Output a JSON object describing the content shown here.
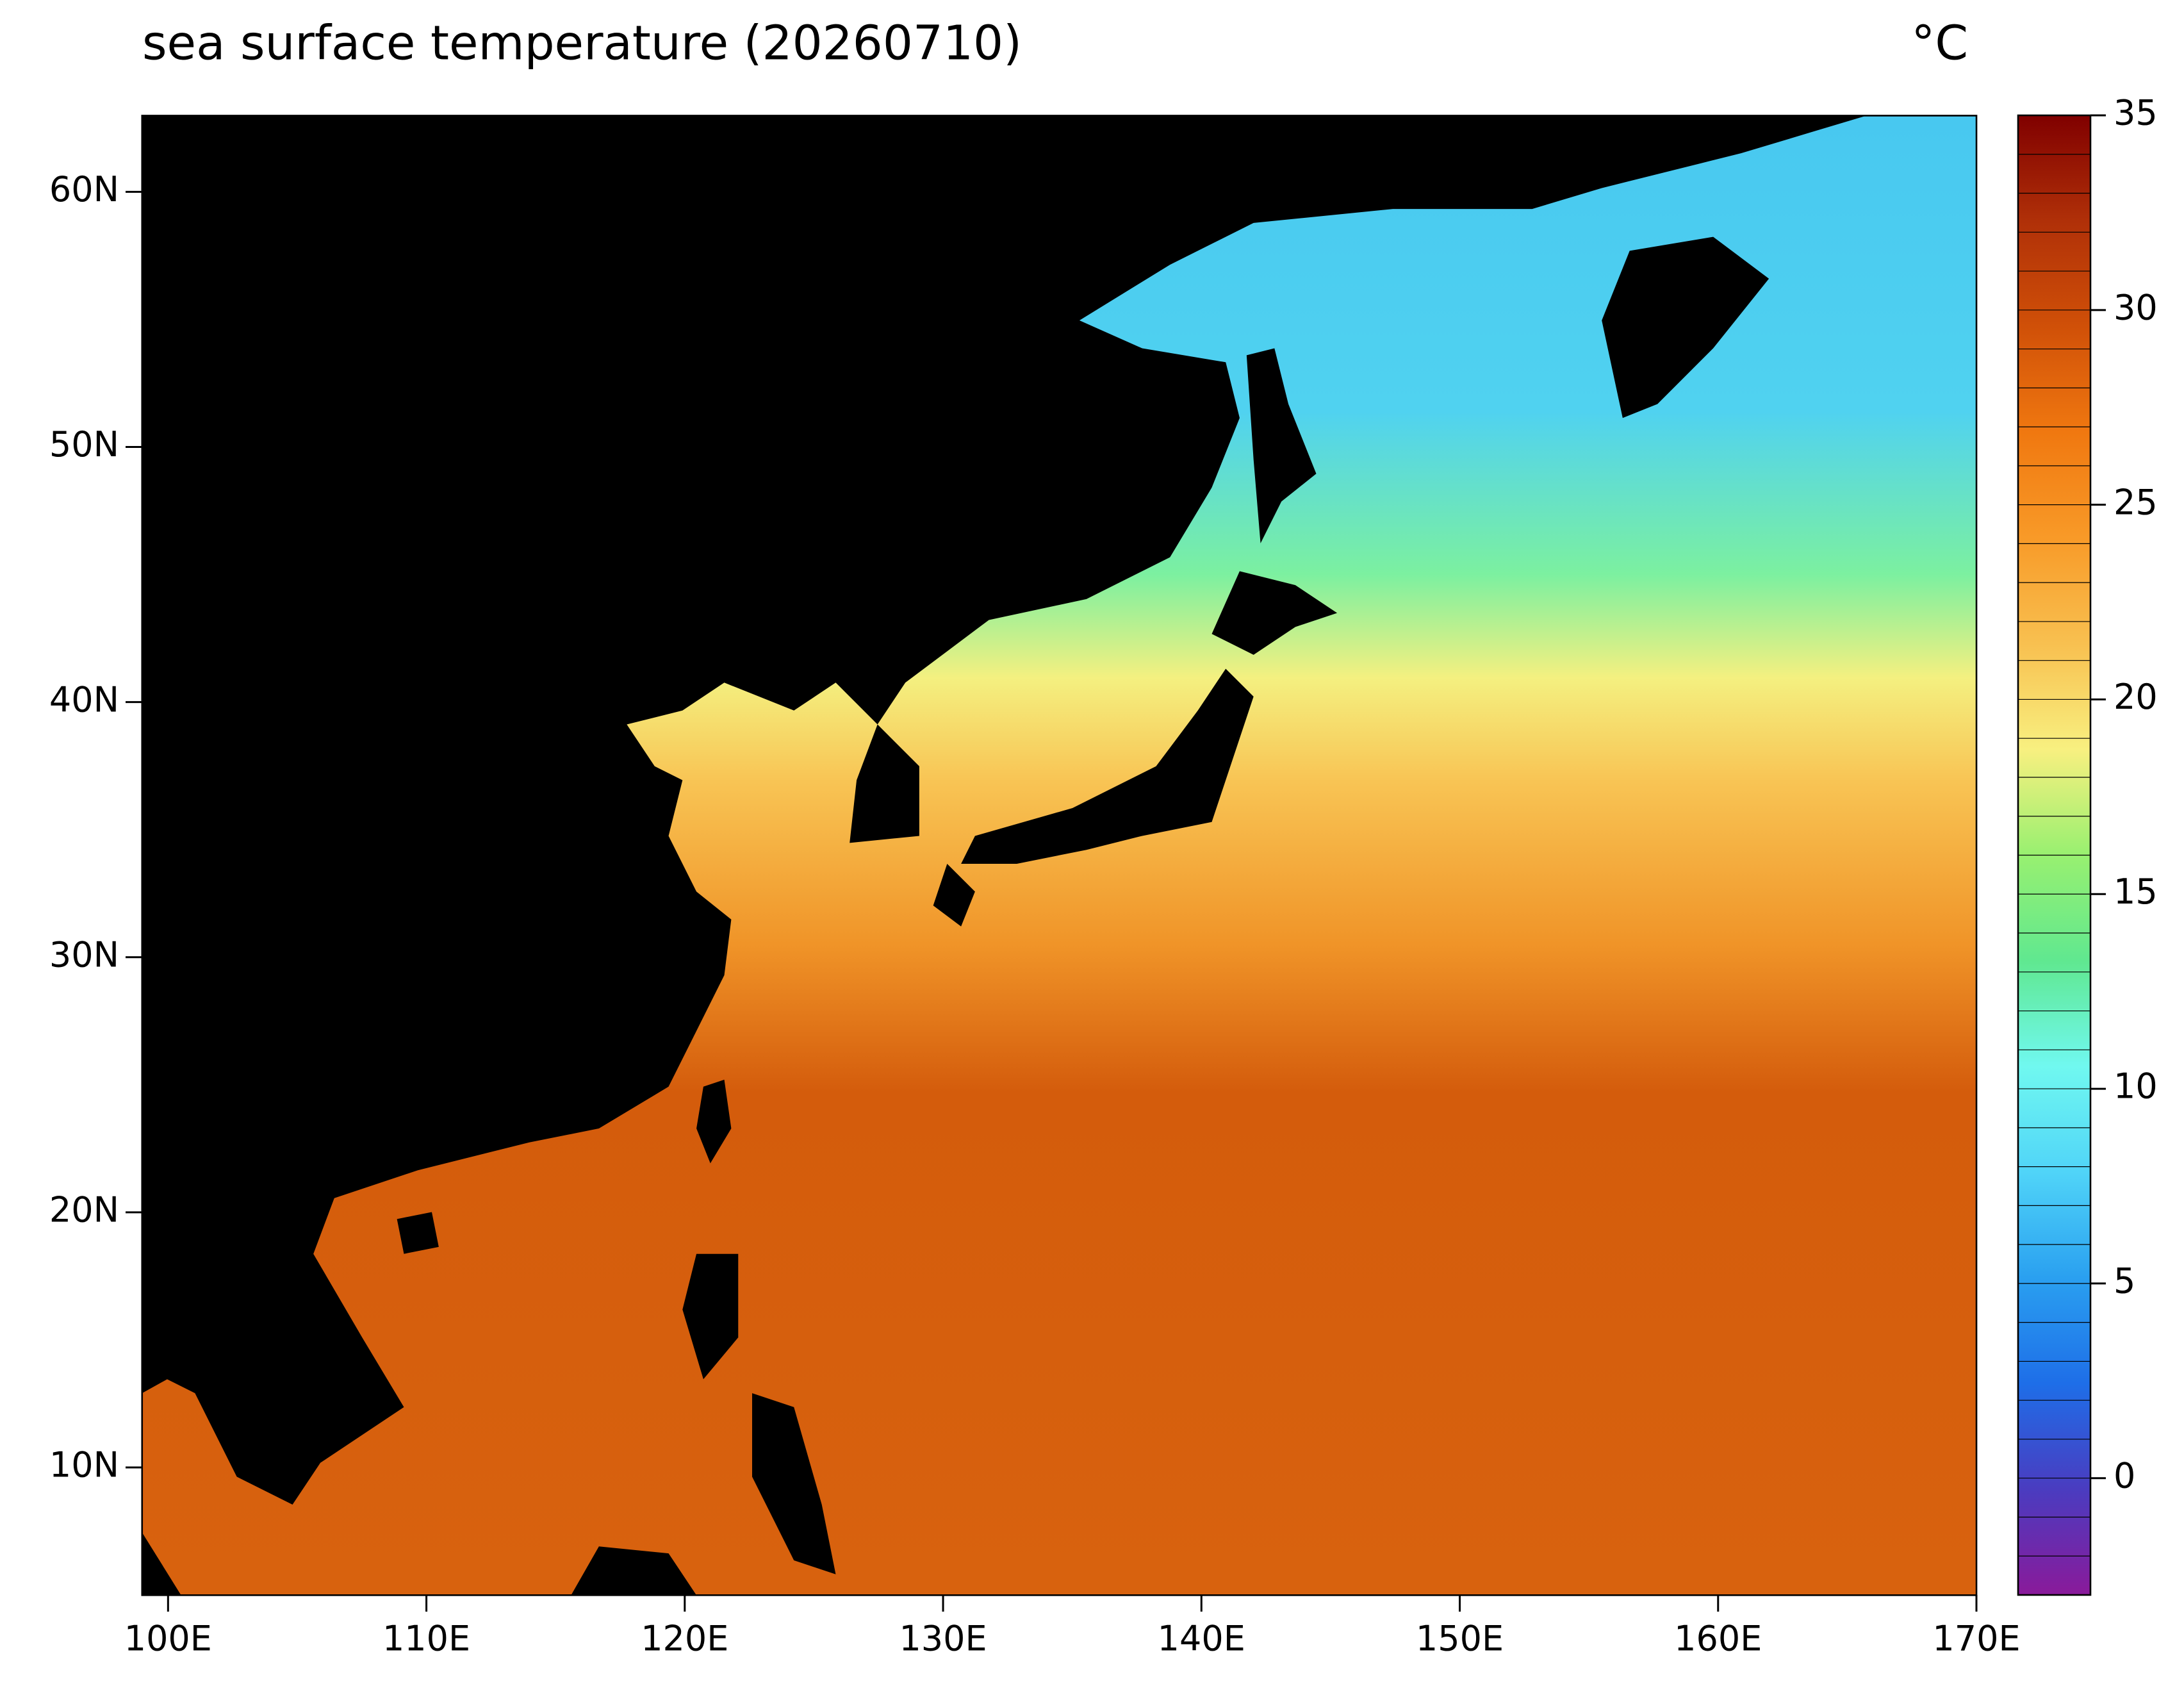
{
  "chart_data": {
    "type": "map",
    "title": "sea surface temperature (20260710)",
    "unit": "°C",
    "xlim": [
      99,
      170
    ],
    "xticks": [
      {
        "value": 100,
        "label": "100E"
      },
      {
        "value": 110,
        "label": "110E"
      },
      {
        "value": 120,
        "label": "120E"
      },
      {
        "value": 130,
        "label": "130E"
      },
      {
        "value": 140,
        "label": "140E"
      },
      {
        "value": 150,
        "label": "150E"
      },
      {
        "value": 160,
        "label": "160E"
      },
      {
        "value": 170,
        "label": "170E"
      }
    ],
    "ylim": [
      5,
      63
    ],
    "yticks": [
      {
        "value": 10,
        "label": "10N"
      },
      {
        "value": 20,
        "label": "20N"
      },
      {
        "value": 30,
        "label": "30N"
      },
      {
        "value": 40,
        "label": "40N"
      },
      {
        "value": 50,
        "label": "50N"
      },
      {
        "value": 60,
        "label": "60N"
      }
    ],
    "clim": [
      -3,
      35
    ],
    "cticks": [
      0,
      5,
      10,
      15,
      20,
      25,
      30,
      35
    ],
    "colormap": [
      "#8a1a9a",
      "#4a3cc0",
      "#1e6ee8",
      "#2aa0f0",
      "#50d4f8",
      "#70f8f0",
      "#60e890",
      "#98f070",
      "#f8f080",
      "#f8c050",
      "#f89a28",
      "#f07810",
      "#d05008",
      "#b03008",
      "#800000"
    ]
  }
}
